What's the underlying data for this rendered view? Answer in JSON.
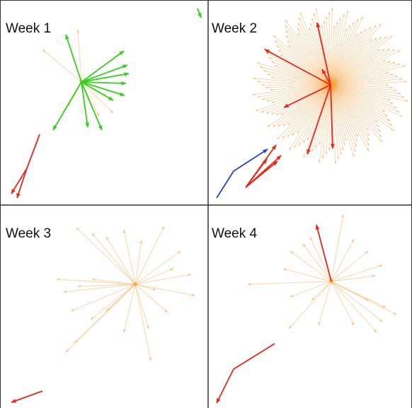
{
  "panels": [
    {
      "title": "Week 1",
      "center": [
        115,
        116
      ],
      "faint_spokes": [
        [
          60,
          70
        ],
        [
          110,
          42
        ],
        [
          150,
          135
        ],
        [
          160,
          160
        ],
        [
          140,
          165
        ],
        [
          97,
          150
        ]
      ],
      "green_spokes": [
        [
          93,
          49
        ],
        [
          175,
          72
        ],
        [
          182,
          104
        ],
        [
          180,
          92
        ],
        [
          178,
          118
        ],
        [
          176,
          135
        ],
        [
          160,
          142
        ],
        [
          124,
          180
        ],
        [
          144,
          184
        ],
        [
          75,
          184
        ]
      ],
      "green_free": [
        [
          [
            279,
            12
          ],
          [
            284,
            25
          ]
        ]
      ],
      "red_paths": [
        [
          [
            56,
            190
          ],
          [
            38,
            238
          ],
          [
            16,
            274
          ]
        ],
        [
          [
            38,
            238
          ],
          [
            24,
            280
          ]
        ]
      ],
      "blue_paths": []
    },
    {
      "title": "Week 2",
      "center": [
        467,
        120
      ],
      "burst": {
        "count": 150,
        "rmin": 82,
        "rmax": 112
      },
      "red_spokes": [
        [
          448,
          32
        ],
        [
          374,
          70
        ],
        [
          455,
          98
        ],
        [
          401,
          152
        ],
        [
          434,
          218
        ],
        [
          470,
          210
        ]
      ],
      "red_fan": {
        "origin": [
          347,
          265
        ],
        "tips": [
          [
            397,
            220
          ],
          [
            390,
            205
          ],
          [
            392,
            228
          ],
          [
            377,
            225
          ]
        ]
      },
      "blue_paths": [
        [
          [
            306,
            280
          ],
          [
            330,
            242
          ],
          [
            378,
            211
          ]
        ]
      ]
    },
    {
      "title": "Week 3",
      "center": [
        191,
        402
      ],
      "faint_spokes": [
        [
          130,
          330
        ],
        [
          108,
          322
        ],
        [
          150,
          335
        ],
        [
          175,
          325
        ],
        [
          232,
          320
        ],
        [
          200,
          340
        ],
        [
          255,
          355
        ],
        [
          270,
          388
        ],
        [
          275,
          418
        ],
        [
          245,
          380
        ],
        [
          80,
          395
        ],
        [
          90,
          413
        ],
        [
          110,
          405
        ],
        [
          130,
          395
        ],
        [
          100,
          440
        ],
        [
          128,
          452
        ],
        [
          150,
          440
        ],
        [
          93,
          498
        ],
        [
          105,
          485
        ],
        [
          175,
          470
        ],
        [
          213,
          510
        ],
        [
          210,
          465
        ],
        [
          237,
          442
        ],
        [
          220,
          410
        ]
      ],
      "red_paths": [
        [
          [
            60,
            553
          ],
          [
            16,
            569
          ]
        ]
      ],
      "blue_paths": []
    },
    {
      "title": "Week 4",
      "center": [
        468,
        398
      ],
      "faint_spokes": [
        [
          485,
          303
        ],
        [
          428,
          345
        ],
        [
          438,
          335
        ],
        [
          500,
          338
        ],
        [
          520,
          355
        ],
        [
          540,
          375
        ],
        [
          530,
          390
        ],
        [
          350,
          402
        ],
        [
          400,
          380
        ],
        [
          410,
          420
        ],
        [
          408,
          465
        ],
        [
          440,
          425
        ],
        [
          450,
          460
        ],
        [
          500,
          460
        ],
        [
          532,
          470
        ],
        [
          540,
          455
        ],
        [
          545,
          435
        ],
        [
          560,
          445
        ],
        [
          520,
          425
        ],
        [
          410,
          355
        ]
      ],
      "red_spokes": [
        [
          447,
          318
        ]
      ],
      "red_paths": [
        [
          [
            388,
            486
          ],
          [
            330,
            522
          ],
          [
            306,
            570
          ]
        ]
      ],
      "blue_paths": []
    }
  ],
  "colors": {
    "faint": "#f8c080",
    "faint_opacity": 0.55,
    "burst": "#f8b060",
    "burst_opacity": 0.5,
    "hub": "#f7a020",
    "green": "#33d11a",
    "red": "#e8261a",
    "blue": "#2540dd",
    "border": "#333333"
  }
}
